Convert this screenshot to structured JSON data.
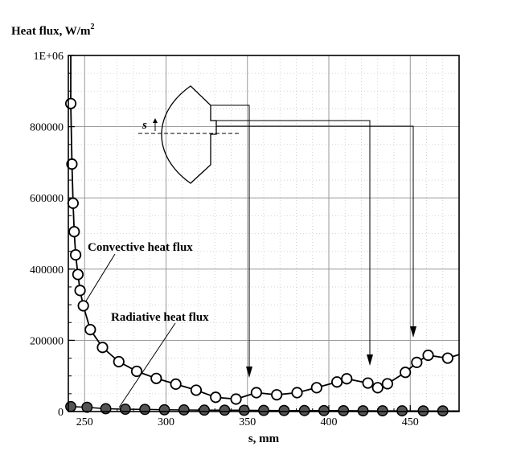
{
  "chart_data": {
    "type": "line",
    "ylabel": "Heat flux, W/m",
    "ylabel_sup": "2",
    "xlabel": "s, mm",
    "xlim": [
      240,
      480
    ],
    "ylim": [
      0,
      1000000
    ],
    "grid": true,
    "x_ticks": [
      250,
      300,
      350,
      400,
      450
    ],
    "y_ticks": [
      0,
      200000,
      400000,
      600000,
      800000,
      1000000
    ],
    "y_tick_labels": [
      "0",
      "200000",
      "400000",
      "600000",
      "800000",
      "1E+06"
    ],
    "series": [
      {
        "name": "Convective heat flux",
        "marker": "open-circle",
        "color": "#000000",
        "points": [
          [
            241.5,
            865000
          ],
          [
            242.2,
            695000
          ],
          [
            242.9,
            585000
          ],
          [
            243.6,
            505000
          ],
          [
            244.5,
            440000
          ],
          [
            245.9,
            385000
          ],
          [
            247.2,
            340000
          ],
          [
            249.2,
            297000
          ],
          [
            253.5,
            230000
          ],
          [
            261,
            180000
          ],
          [
            271,
            140000
          ],
          [
            282,
            113000
          ],
          [
            294,
            93000
          ],
          [
            306,
            77000
          ],
          [
            318.5,
            60000
          ],
          [
            330.5,
            40000
          ],
          [
            343,
            35000
          ],
          [
            355.5,
            53000
          ],
          [
            368,
            47000
          ],
          [
            380.5,
            53000
          ],
          [
            392.5,
            67000
          ],
          [
            405,
            83000
          ],
          [
            411,
            92000
          ],
          [
            424,
            80000
          ],
          [
            430,
            67000
          ],
          [
            436,
            78000
          ],
          [
            447,
            110000
          ],
          [
            454,
            138000
          ],
          [
            461,
            158000
          ],
          [
            473,
            150000
          ],
          [
            480,
            160000
          ]
        ]
      },
      {
        "name": "Radiative heat flux",
        "marker": "filled-circle",
        "color": "#555555",
        "points": [
          [
            241.5,
            14000
          ],
          [
            251.5,
            12000
          ],
          [
            263,
            8000
          ],
          [
            275,
            6500
          ],
          [
            287,
            6000
          ],
          [
            299,
            5000
          ],
          [
            311,
            4500
          ],
          [
            323.5,
            4000
          ],
          [
            336,
            3800
          ],
          [
            348,
            3500
          ],
          [
            360,
            3200
          ],
          [
            372.5,
            3000
          ],
          [
            385,
            2800
          ],
          [
            397,
            2600
          ],
          [
            409,
            2400
          ],
          [
            421,
            2200
          ],
          [
            433,
            2100
          ],
          [
            445,
            2000
          ],
          [
            458,
            1900
          ],
          [
            470,
            1800
          ],
          [
            480,
            1800
          ]
        ]
      }
    ]
  }
}
